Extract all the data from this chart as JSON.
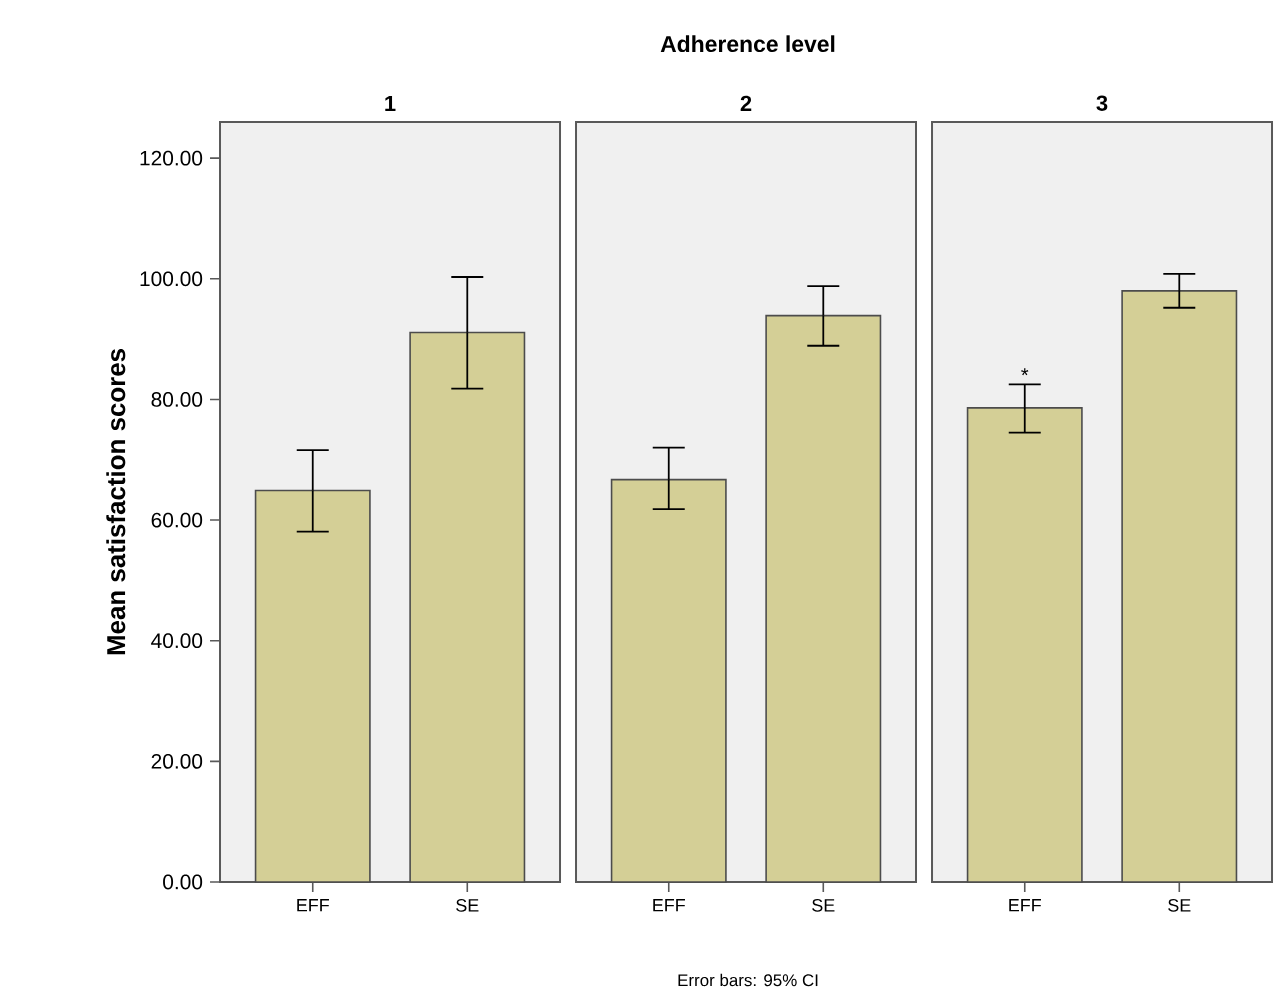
{
  "chart_data": [
    {
      "type": "bar",
      "title": "1",
      "ylabel": "Mean satisfaction scores",
      "categories": [
        "EFF",
        "SE"
      ],
      "values": [
        64.9,
        91.1
      ],
      "errors": [
        [
          58.1,
          71.6
        ],
        [
          81.8,
          100.3
        ]
      ],
      "color": "#d4cf96",
      "ylim": [
        0,
        126
      ],
      "yticks": [
        {
          "value": 0,
          "label": "0.00"
        },
        {
          "value": 20,
          "label": "20.00"
        },
        {
          "value": 40,
          "label": "40.00"
        },
        {
          "value": 60,
          "label": "60.00"
        },
        {
          "value": 80,
          "label": "80.00"
        },
        {
          "value": 100,
          "label": "100.00"
        },
        {
          "value": 120,
          "label": "120.00"
        }
      ],
      "annotations": [
        "Adherence level",
        "Error bars: 95% CI"
      ]
    },
    {
      "type": "bar",
      "title": "2",
      "categories": [
        "EFF",
        "SE"
      ],
      "values": [
        66.7,
        93.9
      ],
      "errors": [
        [
          61.8,
          72.0
        ],
        [
          88.9,
          98.8
        ]
      ],
      "color": "#d4cf96",
      "ylim": [
        0,
        126
      ],
      "tick_labels": "x"
    },
    {
      "type": "bar",
      "title": "3",
      "categories": [
        "EFF",
        "SE"
      ],
      "values": [
        78.6,
        98.0
      ],
      "errors": [
        [
          74.5,
          82.5
        ],
        [
          95.2,
          100.8
        ]
      ],
      "color": "#d4cf96",
      "ylim": [
        0,
        126
      ],
      "tick_labels": "x",
      "annotations": [
        {
          "text": "*",
          "x": "EFF",
          "y": 82.5
        }
      ]
    }
  ]
}
